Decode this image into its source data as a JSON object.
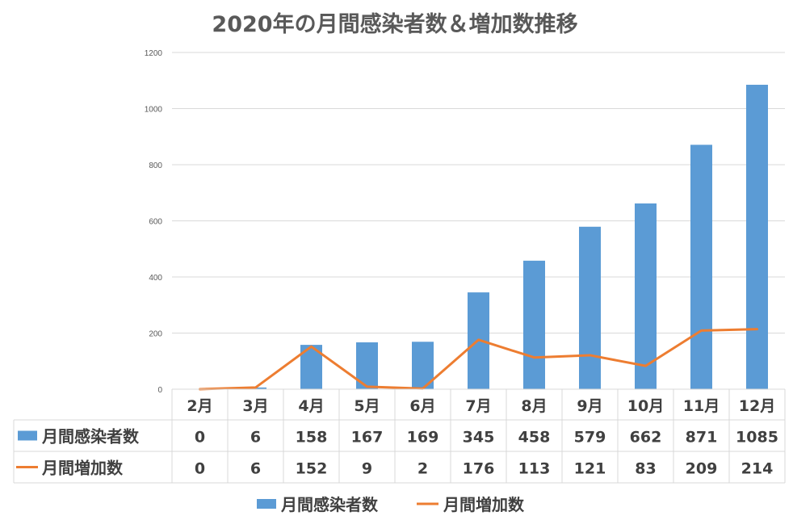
{
  "chart_data": {
    "type": "bar",
    "title": "2020年の月間感染者数＆増加数推移",
    "categories": [
      "2月",
      "3月",
      "4月",
      "5月",
      "6月",
      "7月",
      "8月",
      "9月",
      "10月",
      "11月",
      "12月"
    ],
    "series": [
      {
        "name": "月間感染者数",
        "type": "bar",
        "color": "#5B9BD5",
        "values": [
          0,
          6,
          158,
          167,
          169,
          345,
          458,
          579,
          662,
          871,
          1085
        ]
      },
      {
        "name": "月間増加数",
        "type": "line",
        "color": "#ED7D31",
        "values": [
          0,
          6,
          152,
          9,
          2,
          176,
          113,
          121,
          83,
          209,
          214
        ]
      }
    ],
    "ylim": [
      0,
      1200
    ],
    "yticks": [
      "0",
      "200",
      "400",
      "600",
      "800",
      "1000",
      "1200"
    ],
    "grid": true,
    "legend": "bottom",
    "data_table": true
  }
}
